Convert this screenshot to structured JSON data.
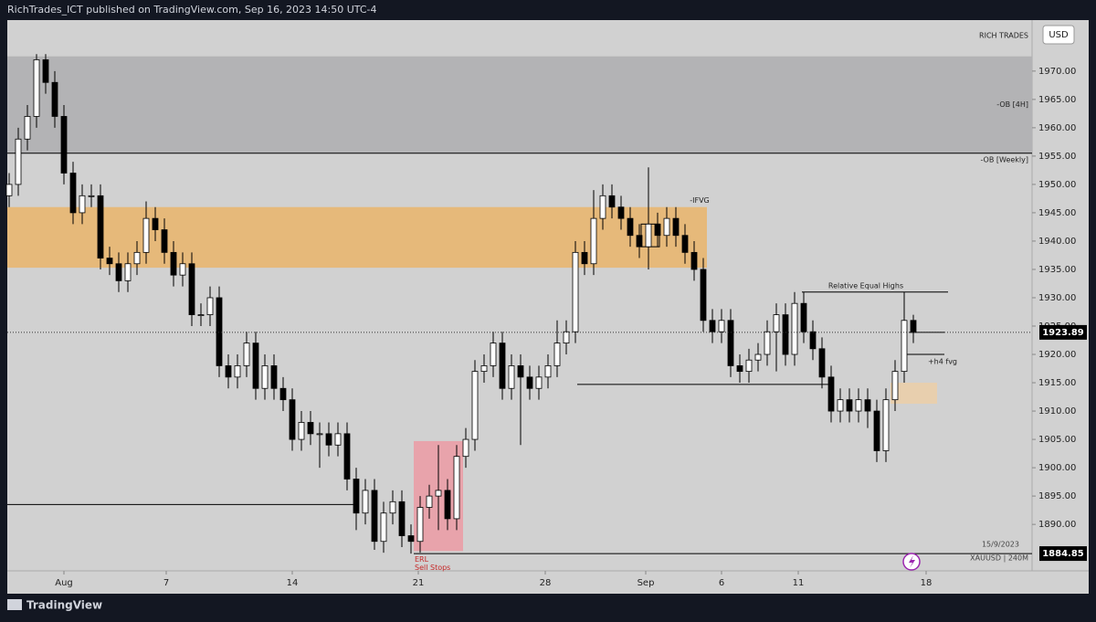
{
  "header": {
    "publisher": "RichTrades_ICT published on TradingView.com, Sep 16, 2023 14:50 UTC-4",
    "brand": "TradingView"
  },
  "chart_data": {
    "type": "candlestick",
    "watermark": "RICH TRADES",
    "currency": "USD",
    "date_label": "15/9/2023",
    "symbol_label": "XAUUSD | 240M",
    "xlim": [
      -0.2,
      112
    ],
    "ylim": [
      1881.8,
      1979
    ],
    "xticks": [
      {
        "value": 6,
        "label": "Aug"
      },
      {
        "value": 17.2,
        "label": "7"
      },
      {
        "value": 31,
        "label": "14"
      },
      {
        "value": 44.8,
        "label": "21"
      },
      {
        "value": 58.7,
        "label": "28"
      },
      {
        "value": 69.7,
        "label": "Sep"
      },
      {
        "value": 78,
        "label": "6"
      },
      {
        "value": 86.4,
        "label": "11"
      },
      {
        "value": 100.4,
        "label": "18"
      }
    ],
    "yticks": [
      {
        "value": 1890,
        "label": "1890.00"
      },
      {
        "value": 1895,
        "label": "1895.00"
      },
      {
        "value": 1900,
        "label": "1900.00"
      },
      {
        "value": 1905,
        "label": "1905.00"
      },
      {
        "value": 1910,
        "label": "1910.00"
      },
      {
        "value": 1915,
        "label": "1915.00"
      },
      {
        "value": 1920,
        "label": "1920.00"
      },
      {
        "value": 1925,
        "label": "1925.00"
      },
      {
        "value": 1930,
        "label": "1930.00"
      },
      {
        "value": 1935,
        "label": "1935.00"
      },
      {
        "value": 1940,
        "label": "1940.00"
      },
      {
        "value": 1945,
        "label": "1945.00"
      },
      {
        "value": 1950,
        "label": "1950.00"
      },
      {
        "value": 1955,
        "label": "1955.00"
      },
      {
        "value": 1960,
        "label": "1960.00"
      },
      {
        "value": 1965,
        "label": "1965.00"
      },
      {
        "value": 1970,
        "label": "1970.00"
      }
    ],
    "up_color": "#ffffff",
    "down_color": "#000000",
    "series": [
      {
        "name": "XAUUSD",
        "open": [
          1948,
          1950,
          1958,
          1962,
          1972,
          1968,
          1962,
          1952,
          1945,
          1948,
          1948,
          1937,
          1936,
          1933,
          1936,
          1938,
          1944,
          1942,
          1938,
          1934,
          1936,
          1927,
          1927,
          1930,
          1918,
          1916,
          1918,
          1922,
          1914,
          1918,
          1914,
          1912,
          1905,
          1908,
          1906,
          1906,
          1904,
          1906,
          1898,
          1892,
          1896,
          1887,
          1892,
          1894,
          1888,
          1887,
          1893,
          1895,
          1896,
          1891,
          1902,
          1905,
          1917,
          1918,
          1922,
          1914,
          1918,
          1916,
          1914,
          1916,
          1918,
          1922,
          1924,
          1938,
          1936,
          1944,
          1948,
          1946,
          1944,
          1941,
          1939,
          1943,
          1941,
          1944,
          1941,
          1938,
          1935,
          1926,
          1924,
          1926,
          1918,
          1917,
          1919,
          1920,
          1924,
          1927,
          1920,
          1929,
          1924,
          1921,
          1916,
          1910,
          1912,
          1910,
          1912,
          1910,
          1903,
          1912,
          1917,
          1926
        ],
        "high": [
          1952,
          1960,
          1964,
          1973,
          1973,
          1970,
          1964,
          1954,
          1950,
          1950,
          1950,
          1939,
          1938,
          1938,
          1940,
          1947,
          1946,
          1944,
          1940,
          1938,
          1938,
          1929,
          1932,
          1932,
          1920,
          1920,
          1924,
          1924,
          1920,
          1920,
          1916,
          1914,
          1910,
          1910,
          1908,
          1908,
          1908,
          1908,
          1900,
          1898,
          1898,
          1894,
          1896,
          1896,
          1890,
          1895,
          1897,
          1904,
          1898,
          1904,
          1907,
          1919,
          1920,
          1924,
          1924,
          1920,
          1920,
          1918,
          1918,
          1920,
          1926,
          1926,
          1940,
          1940,
          1949,
          1950,
          1950,
          1948,
          1946,
          1943,
          1953,
          1945,
          1946,
          1946,
          1943,
          1940,
          1937,
          1928,
          1928,
          1928,
          1920,
          1921,
          1922,
          1926,
          1929,
          1929,
          1931,
          1931,
          1926,
          1923,
          1918,
          1914,
          1914,
          1914,
          1914,
          1912,
          1914,
          1919,
          1931,
          1927
        ],
        "low": [
          1946,
          1948,
          1956,
          1960,
          1966,
          1960,
          1950,
          1943,
          1943,
          1946,
          1935,
          1934,
          1931,
          1931,
          1934,
          1936,
          1940,
          1936,
          1932,
          1932,
          1925,
          1925,
          1925,
          1916,
          1914,
          1914,
          1916,
          1912,
          1912,
          1912,
          1910,
          1903,
          1903,
          1904,
          1900,
          1902,
          1902,
          1896,
          1889,
          1890,
          1885.5,
          1885,
          1890,
          1886,
          1884.85,
          1885,
          1891,
          1889,
          1889,
          1889,
          1900,
          1903,
          1915,
          1916,
          1912,
          1912,
          1904,
          1912,
          1912,
          1914,
          1916,
          1920,
          1922,
          1934,
          1934,
          1942,
          1944,
          1942,
          1939,
          1937,
          1935,
          1939,
          1939,
          1939,
          1936,
          1933,
          1924,
          1922,
          1922,
          1916,
          1915,
          1915,
          1917,
          1918,
          1917,
          1918,
          1918,
          1922,
          1919,
          1914,
          1908,
          1908,
          1908,
          1908,
          1907,
          1901,
          1901,
          1910,
          1915,
          1922
        ],
        "close": [
          1950,
          1958,
          1962,
          1972,
          1968,
          1962,
          1952,
          1945,
          1948,
          1948,
          1937,
          1936,
          1933,
          1936,
          1938,
          1944,
          1942,
          1938,
          1934,
          1936,
          1927,
          1927,
          1930,
          1918,
          1916,
          1918,
          1922,
          1914,
          1918,
          1914,
          1912,
          1905,
          1908,
          1906,
          1906,
          1904,
          1906,
          1898,
          1892,
          1896,
          1887,
          1892,
          1894,
          1888,
          1887,
          1893,
          1895,
          1896,
          1891,
          1902,
          1905,
          1917,
          1918,
          1922,
          1914,
          1918,
          1916,
          1914,
          1916,
          1918,
          1922,
          1924,
          1938,
          1936,
          1944,
          1948,
          1946,
          1944,
          1941,
          1939,
          1943,
          1941,
          1944,
          1941,
          1938,
          1935,
          1926,
          1924,
          1926,
          1918,
          1917,
          1919,
          1920,
          1924,
          1927,
          1920,
          1929,
          1924,
          1921,
          1916,
          1910,
          1912,
          1910,
          1912,
          1910,
          1903,
          1912,
          1917,
          1926,
          1923.89
        ]
      }
    ],
    "last_price": {
      "value": 1923.89,
      "label": "1923.89"
    },
    "low_level": {
      "value": 1884.85,
      "label": "1884.85"
    },
    "zones": [
      {
        "label": "-OB [4H]",
        "top": 1972.6,
        "bottom": 1955.5,
        "x0": -0.2,
        "x1": 112,
        "color": "#b3b3b5"
      },
      {
        "top": 1946,
        "bottom": 1935.3,
        "x0": -0.2,
        "x1": 76.4,
        "color": "#e6b97a"
      },
      {
        "top": 1904.7,
        "bottom": 1885.3,
        "x0": 44.3,
        "x1": 49.7,
        "color": "#e8a3ab"
      },
      {
        "top": 1915,
        "bottom": 1911.3,
        "x0": 96.5,
        "x1": 101.6,
        "color": "#e8cfae"
      }
    ],
    "levels": [
      {
        "label": "-OB [Weekly]",
        "value": 1955.5,
        "x0": -0.2,
        "x1": 112
      },
      {
        "value": 1893.5,
        "x0": -0.2,
        "x1": 38.2
      },
      {
        "value": 1914.7,
        "x0": 62.2,
        "x1": 90.2
      },
      {
        "label": "Relative Equal Highs",
        "value": 1931,
        "x0": 86.8,
        "x1": 102.8
      },
      {
        "label": "+h4 fvg",
        "value": 1920,
        "x0": 98,
        "x1": 102.4
      },
      {
        "value": 1923.9,
        "x0": 98.5,
        "x1": 102.4
      },
      {
        "value": 1884.85,
        "x0": 44.3,
        "x1": 112
      }
    ],
    "ifvg": {
      "label": "-IFVG",
      "top": 1943,
      "bottom": 1939,
      "x0": 69.2,
      "x1": 71.2
    },
    "erl": [
      "ERL",
      "Sell Stops"
    ]
  }
}
